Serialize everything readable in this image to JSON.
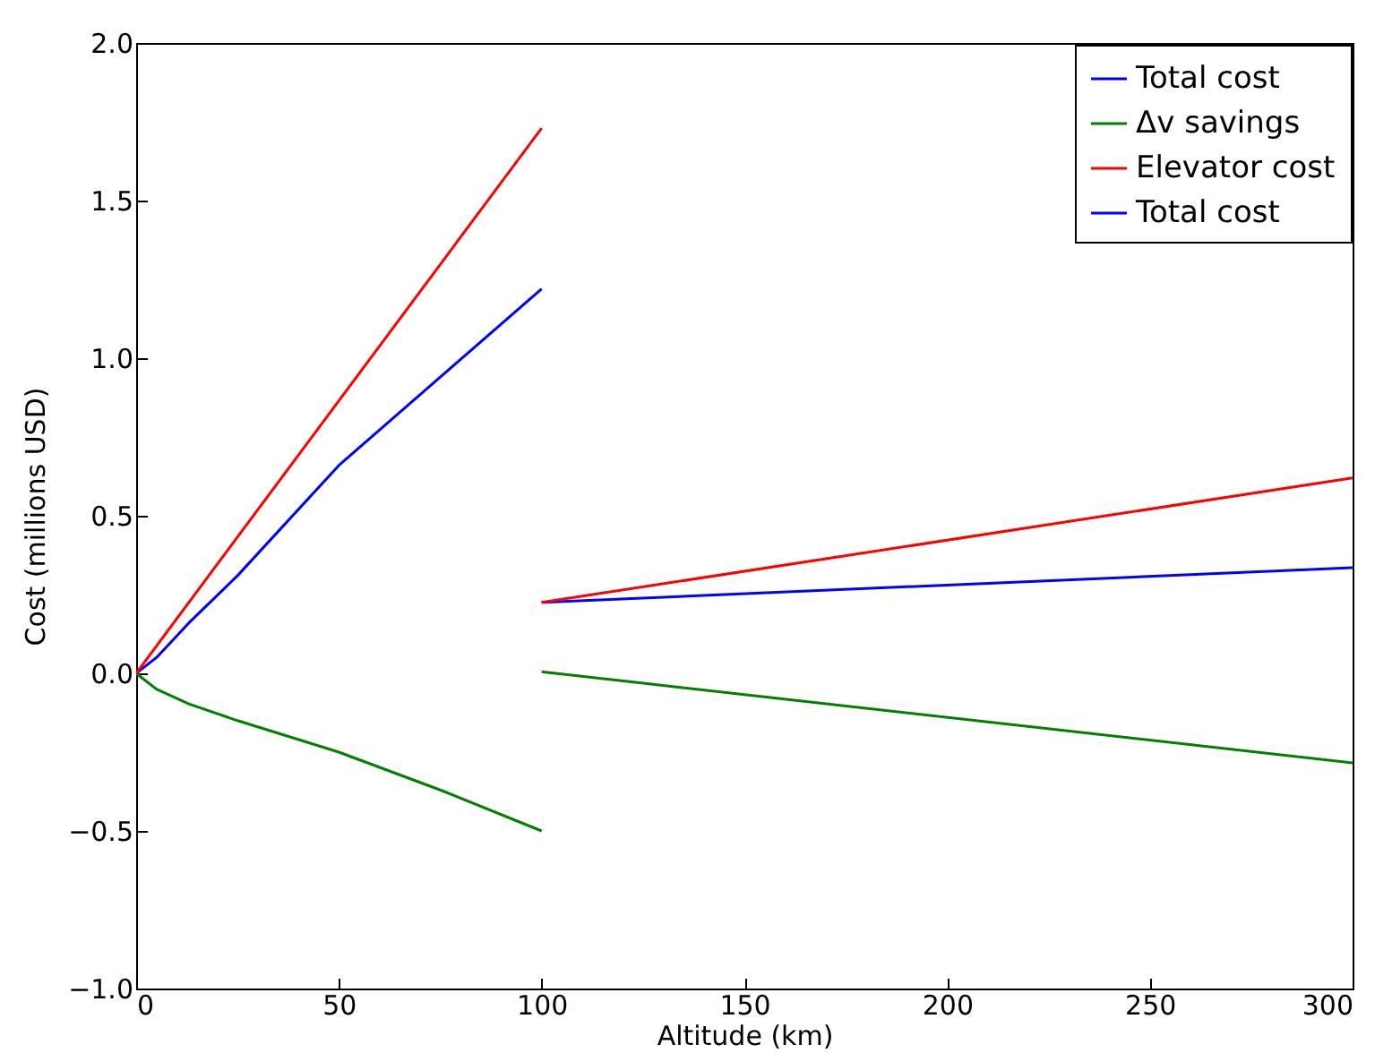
{
  "chart_data": {
    "type": "line",
    "xlabel": "Altitude (km)",
    "ylabel": "Cost (millions USD)",
    "xlim": [
      0,
      300
    ],
    "xticks": [
      0,
      50,
      100,
      150,
      200,
      250,
      300
    ],
    "ylim": [
      -1,
      2
    ],
    "yticks": [
      {
        "value": -1,
        "label": "−1.0"
      },
      {
        "value": -0.5,
        "label": "−0.5"
      },
      {
        "value": 0,
        "label": "0.0"
      },
      0.5,
      {
        "value": 1,
        "label": "1.0"
      },
      1.5,
      {
        "value": 2,
        "label": "2.0"
      }
    ],
    "grid": false,
    "legend": "top right",
    "marker": "none",
    "line_style": "solid",
    "series": [
      {
        "name": "Total cost",
        "color": "#0000ff",
        "x": [
          0,
          5,
          13,
          25,
          50,
          75,
          100
        ],
        "values": [
          0,
          0.05,
          0.16,
          0.31,
          0.66,
          0.94,
          1.22
        ]
      },
      {
        "name": "Δv savings",
        "color": "#008000",
        "x": [
          0,
          5,
          13,
          25,
          50,
          75,
          100
        ],
        "values": [
          0,
          -0.05,
          -0.097,
          -0.15,
          -0.25,
          -0.37,
          -0.5
        ]
      },
      {
        "name": "Elevator cost",
        "color": "#ff0000",
        "x": [
          0,
          100
        ],
        "values": [
          0,
          1.73
        ]
      },
      {
        "name": "Total cost",
        "color": "#0000ff",
        "x": [
          100,
          300
        ],
        "values": [
          0.225,
          0.335
        ]
      },
      {
        "color": "#008000",
        "x": [
          100,
          300
        ],
        "values": [
          0.005,
          -0.284
        ]
      },
      {
        "color": "#ff0000",
        "x": [
          100,
          300
        ],
        "values": [
          0.225,
          0.62
        ]
      }
    ]
  }
}
